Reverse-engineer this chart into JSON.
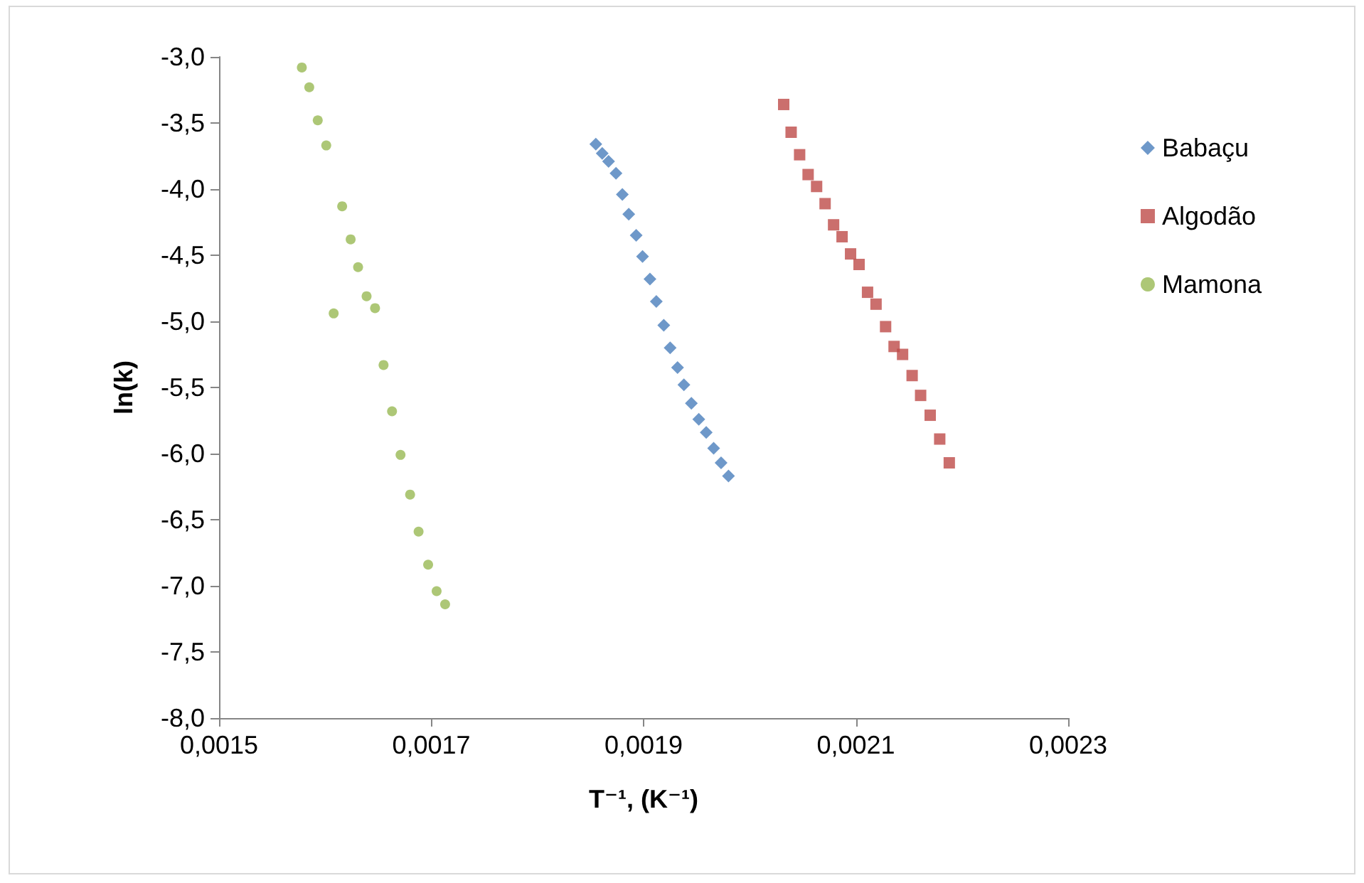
{
  "chart_data": {
    "type": "scatter",
    "xlabel": "T⁻¹, (K⁻¹)",
    "ylabel": "ln(k)",
    "legend": "right",
    "grid": false,
    "xlim": [
      0.0015,
      0.0023
    ],
    "ylim": [
      -8.0,
      -3.0
    ],
    "xticks": [
      {
        "value": 0.0015,
        "label": "0,0015"
      },
      {
        "value": 0.0017,
        "label": "0,0017"
      },
      {
        "value": 0.0019,
        "label": "0,0019"
      },
      {
        "value": 0.0021,
        "label": "0,0021"
      },
      {
        "value": 0.0023,
        "label": "0,0023"
      }
    ],
    "yticks": [
      {
        "value": -3.0,
        "label": "-3,0"
      },
      {
        "value": -3.5,
        "label": "-3,5"
      },
      {
        "value": -4.0,
        "label": "-4,0"
      },
      {
        "value": -4.5,
        "label": "-4,5"
      },
      {
        "value": -5.0,
        "label": "-5,0"
      },
      {
        "value": -5.5,
        "label": "-5,5"
      },
      {
        "value": -6.0,
        "label": "-6,0"
      },
      {
        "value": -6.5,
        "label": "-6,5"
      },
      {
        "value": -7.0,
        "label": "-7,0"
      },
      {
        "value": -7.5,
        "label": "-7,5"
      },
      {
        "value": -8.0,
        "label": "-8,0"
      }
    ],
    "series": [
      {
        "name": "Babaçu",
        "color": "#4a7ebb",
        "marker": "diamond",
        "x": [
          0.001855,
          0.001861,
          0.001867,
          0.001874,
          0.00188,
          0.001886,
          0.001893,
          0.001899,
          0.001906,
          0.001912,
          0.001919,
          0.001925,
          0.001932,
          0.001938,
          0.001945,
          0.001952,
          0.001959,
          0.001966,
          0.001973,
          0.00198
        ],
        "values": [
          -3.66,
          -3.73,
          -3.79,
          -3.88,
          -4.04,
          -4.19,
          -4.35,
          -4.51,
          -4.68,
          -4.85,
          -5.03,
          -5.2,
          -5.35,
          -5.48,
          -5.62,
          -5.74,
          -5.84,
          -5.96,
          -6.07,
          -6.17
        ]
      },
      {
        "name": "Algodão",
        "color": "#be4b48",
        "marker": "square",
        "x": [
          0.002032,
          0.002039,
          0.002047,
          0.002055,
          0.002063,
          0.002071,
          0.002079,
          0.002087,
          0.002095,
          0.002103,
          0.002111,
          0.002119,
          0.002128,
          0.002136,
          0.002144,
          0.002153,
          0.002161,
          0.00217,
          0.002179,
          0.002188
        ],
        "values": [
          -3.36,
          -3.57,
          -3.74,
          -3.89,
          -3.98,
          -4.11,
          -4.27,
          -4.36,
          -4.49,
          -4.57,
          -4.78,
          -4.87,
          -5.04,
          -5.19,
          -5.25,
          -5.41,
          -5.56,
          -5.71,
          -5.89,
          -6.07
        ]
      },
      {
        "name": "Mamona",
        "color": "#98b954",
        "marker": "circle",
        "x": [
          0.001578,
          0.001585,
          0.001593,
          0.001601,
          0.001616,
          0.001624,
          0.001631,
          0.001639,
          0.001647,
          0.001608,
          0.001655,
          0.001663,
          0.001671,
          0.00168,
          0.001688,
          0.001697,
          0.001705,
          0.001713
        ],
        "values": [
          -3.08,
          -3.23,
          -3.48,
          -3.67,
          -4.13,
          -4.38,
          -4.59,
          -4.81,
          -4.9,
          -4.94,
          -5.33,
          -5.68,
          -6.01,
          -6.31,
          -6.59,
          -6.84,
          -7.04,
          -7.14
        ]
      }
    ]
  }
}
